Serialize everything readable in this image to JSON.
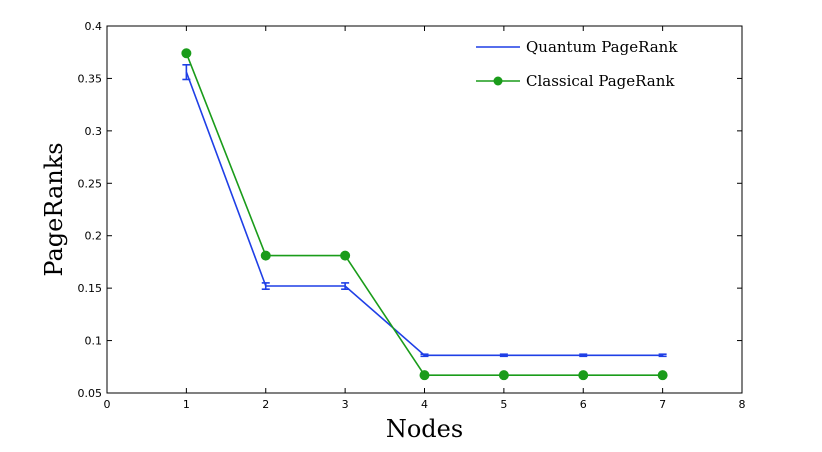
{
  "chart_data": {
    "type": "line",
    "xlabel": "Nodes",
    "ylabel": "PageRanks",
    "xlim": [
      0,
      8
    ],
    "ylim": [
      0.05,
      0.4
    ],
    "xticks": [
      0,
      1,
      2,
      3,
      4,
      5,
      6,
      7,
      8
    ],
    "yticks": [
      0.05,
      0.1,
      0.15,
      0.2,
      0.25,
      0.3,
      0.35,
      0.4
    ],
    "xtick_labels": [
      "0",
      "1",
      "2",
      "3",
      "4",
      "5",
      "6",
      "7",
      "8"
    ],
    "ytick_labels": [
      "0.05",
      "0.1",
      "0.15",
      "0.2",
      "0.25",
      "0.3",
      "0.35",
      "0.4"
    ],
    "grid": false,
    "legend_position": "top-right",
    "x": [
      1,
      2,
      3,
      4,
      5,
      6,
      7
    ],
    "series": [
      {
        "name": "Quantum PageRank",
        "color": "#1f3fe6",
        "marker": "none",
        "values": [
          0.356,
          0.152,
          0.152,
          0.086,
          0.086,
          0.086,
          0.086
        ],
        "errors": [
          0.007,
          0.003,
          0.003,
          0.001,
          0.001,
          0.001,
          0.001
        ]
      },
      {
        "name": "Classical PageRank",
        "color": "#1a9c1a",
        "marker": "circle",
        "values": [
          0.374,
          0.181,
          0.181,
          0.067,
          0.067,
          0.067,
          0.067
        ]
      }
    ]
  }
}
